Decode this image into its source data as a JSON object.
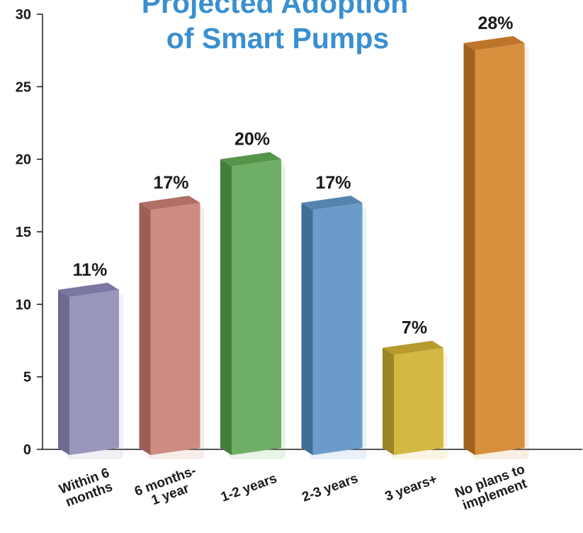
{
  "chart_data": {
    "type": "bar",
    "title_lines": [
      "Projected Adoption",
      "of Smart Pumps"
    ],
    "xlabel": "",
    "ylabel": "",
    "ylim": [
      0,
      30
    ],
    "yticks": [
      0,
      5,
      10,
      15,
      20,
      25,
      30
    ],
    "grid": false,
    "legend": "none",
    "categories": [
      [
        "Within 6",
        "months"
      ],
      [
        "6 months-",
        "1 year"
      ],
      [
        "1-2 years"
      ],
      [
        "2-3 years"
      ],
      [
        "3 years+"
      ],
      [
        "No plans to",
        "implement"
      ]
    ],
    "values": [
      11,
      17,
      20,
      17,
      7,
      28
    ],
    "value_labels": [
      "11%",
      "17%",
      "20%",
      "17%",
      "7%",
      "28%"
    ],
    "colors": [
      {
        "front": "#9a97bd",
        "side": "#6e6b91",
        "top": "#7a77a2"
      },
      {
        "front": "#cc8c82",
        "side": "#9c5f56",
        "top": "#b07065"
      },
      {
        "front": "#6fae66",
        "side": "#437e3d",
        "top": "#559449"
      },
      {
        "front": "#6b9cc9",
        "side": "#416e95",
        "top": "#5584b0"
      },
      {
        "front": "#d4b844",
        "side": "#9d8424",
        "top": "#b89b2e"
      },
      {
        "front": "#d78f3e",
        "side": "#a1621f",
        "top": "#bd752a"
      }
    ]
  }
}
